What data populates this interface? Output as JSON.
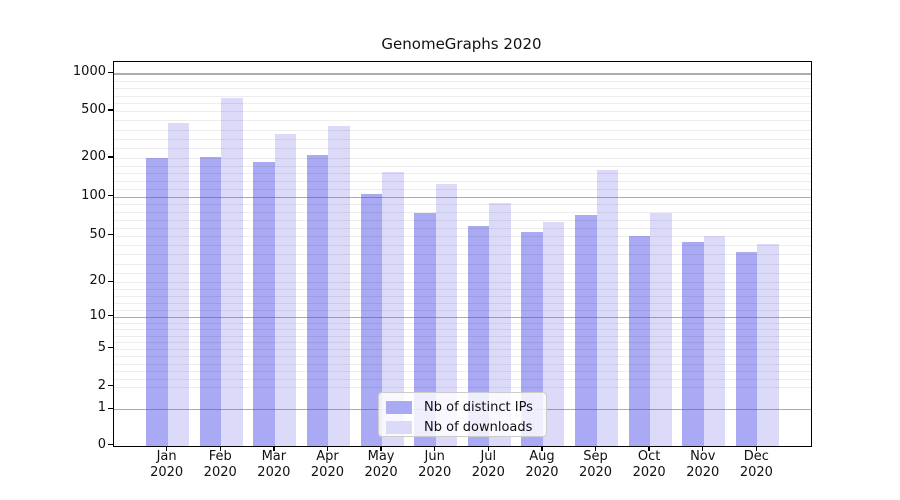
{
  "chart_data": {
    "type": "bar",
    "title": "GenomeGraphs 2020",
    "scale": "symlog (log-like y axis with linear segment near 0)",
    "categories": [
      "Jan",
      "Feb",
      "Mar",
      "Apr",
      "May",
      "Jun",
      "Jul",
      "Aug",
      "Sep",
      "Oct",
      "Nov",
      "Dec"
    ],
    "xtick_year": "2020",
    "series": [
      {
        "name": "Nb of distinct IPs",
        "color": "#a9a9f4",
        "values": [
          200,
          205,
          187,
          213,
          105,
          75,
          59,
          53,
          72,
          50,
          44,
          36
        ]
      },
      {
        "name": "Nb of downloads",
        "color": "#dbdbf9",
        "values": [
          395,
          630,
          318,
          370,
          156,
          125,
          90,
          64,
          160,
          75,
          50,
          42
        ]
      }
    ],
    "yticks": [
      0,
      1,
      2,
      5,
      10,
      20,
      50,
      100,
      200,
      500,
      1000
    ],
    "ylim": [
      0,
      1250
    ],
    "grid": "horizontal: gray major lines at decades, faint minor lines between ticks",
    "legend_position": "lower center"
  }
}
